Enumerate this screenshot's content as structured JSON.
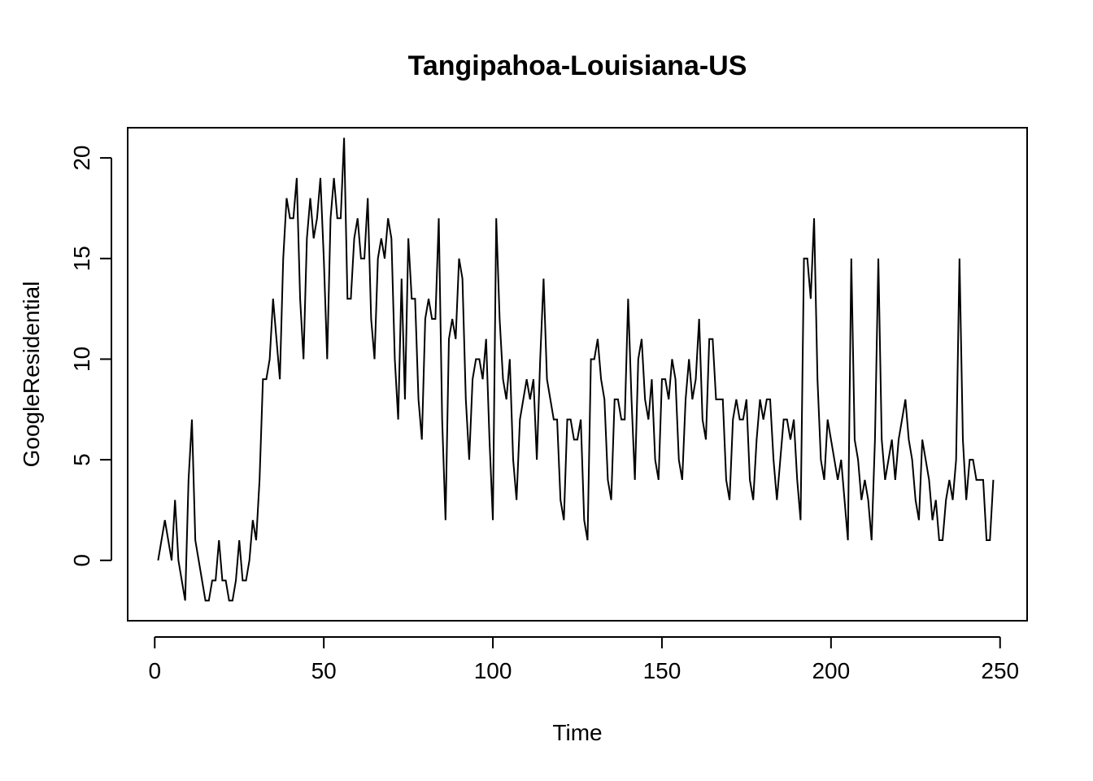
{
  "chart_data": {
    "type": "line",
    "title": "Tangipahoa-Louisiana-US",
    "xlabel": "Time",
    "ylabel": "GoogleResidential",
    "xlim": [
      -8,
      258
    ],
    "ylim": [
      -3,
      21.5
    ],
    "x_ticks": [
      0,
      50,
      100,
      150,
      200,
      250
    ],
    "x_tick_labels": [
      "0",
      "50",
      "100",
      "150",
      "200",
      "250"
    ],
    "y_ticks": [
      0,
      5,
      10,
      15,
      20
    ],
    "y_tick_labels": [
      "0",
      "5",
      "10",
      "15",
      "20"
    ],
    "grid": false,
    "legend": false,
    "series": [
      {
        "x_start": 1,
        "x_step": 1,
        "values": [
          0,
          1,
          2,
          1,
          0,
          3,
          0,
          -1,
          -2,
          4,
          7,
          1,
          0,
          -1,
          -2,
          -2,
          -1,
          -1,
          1,
          -1,
          -1,
          -2,
          -2,
          -1,
          1,
          -1,
          -1,
          0,
          2,
          1,
          4,
          9,
          9,
          10,
          13,
          11,
          9,
          15,
          18,
          17,
          17,
          19,
          13,
          10,
          16,
          18,
          16,
          17,
          19,
          15,
          10,
          17,
          19,
          17,
          17,
          21,
          13,
          13,
          16,
          17,
          15,
          15,
          18,
          12,
          10,
          15,
          16,
          15,
          17,
          16,
          10,
          7,
          14,
          8,
          16,
          13,
          13,
          8,
          6,
          12,
          13,
          12,
          12,
          17,
          7,
          2,
          11,
          12,
          11,
          15,
          14,
          8,
          5,
          9,
          10,
          10,
          9,
          11,
          6,
          2,
          17,
          12,
          9,
          8,
          10,
          5,
          3,
          7,
          8,
          9,
          8,
          9,
          5,
          10,
          14,
          9,
          8,
          7,
          7,
          3,
          2,
          7,
          7,
          6,
          6,
          7,
          2,
          1,
          10,
          10,
          11,
          9,
          8,
          4,
          3,
          8,
          8,
          7,
          7,
          13,
          8,
          4,
          10,
          11,
          8,
          7,
          9,
          5,
          4,
          9,
          9,
          8,
          10,
          9,
          5,
          4,
          8,
          10,
          8,
          9,
          12,
          7,
          6,
          11,
          11,
          8,
          8,
          8,
          4,
          3,
          7,
          8,
          7,
          7,
          8,
          4,
          3,
          6,
          8,
          7,
          8,
          8,
          5,
          3,
          5,
          7,
          7,
          6,
          7,
          4,
          2,
          15,
          15,
          13,
          17,
          9,
          5,
          4,
          7,
          6,
          5,
          4,
          5,
          3,
          1,
          15,
          6,
          5,
          3,
          4,
          3,
          1,
          6,
          15,
          6,
          4,
          5,
          6,
          4,
          6,
          7,
          8,
          6,
          5,
          3,
          2,
          6,
          5,
          4,
          2,
          3,
          1,
          1,
          3,
          4,
          3,
          5,
          15,
          6,
          3,
          5,
          5,
          4,
          4,
          4,
          1,
          1,
          4
        ]
      }
    ]
  }
}
